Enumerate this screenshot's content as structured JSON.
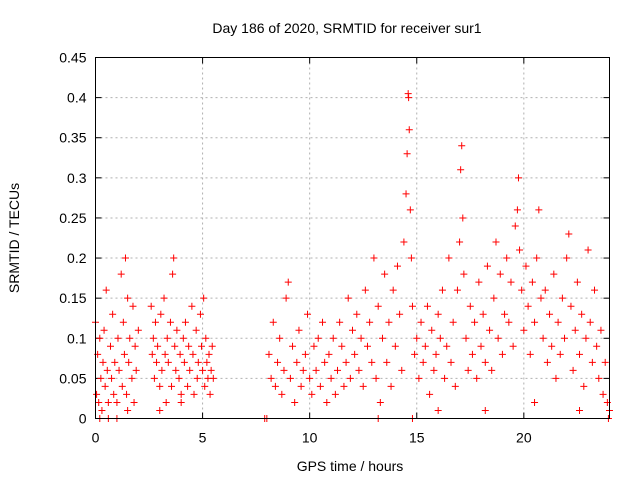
{
  "chart_data": {
    "type": "scatter",
    "title": "Day 186 of 2020, SRMTID for receiver sur1",
    "xlabel": "GPS time / hours",
    "ylabel": "SRMTID / TECUs",
    "xlim": [
      0,
      24
    ],
    "ylim": [
      0,
      0.45
    ],
    "xticks": [
      0,
      5,
      10,
      15,
      20
    ],
    "yticks": [
      0,
      0.05,
      0.1,
      0.15,
      0.2,
      0.25,
      0.3,
      0.35,
      0.4,
      0.45
    ],
    "ytick_labels": [
      "0",
      "0.05",
      "0.1",
      "0.15",
      "0.2",
      "0.25",
      "0.3",
      "0.35",
      "0.4",
      "0.45"
    ],
    "grid": true,
    "marker": "+",
    "color": "#ff0000",
    "series": [
      {
        "name": "sur1",
        "points": [
          [
            0.0,
            0.12
          ],
          [
            0.05,
            0.03
          ],
          [
            0.1,
            0.08
          ],
          [
            0.15,
            0.02
          ],
          [
            0.2,
            0.1
          ],
          [
            0.25,
            0.05
          ],
          [
            0.3,
            0.01
          ],
          [
            0.35,
            0.07
          ],
          [
            0.4,
            0.11
          ],
          [
            0.45,
            0.04
          ],
          [
            0.5,
            0.16
          ],
          [
            0.55,
            0.06
          ],
          [
            0.6,
            0.02
          ],
          [
            0.7,
            0.09
          ],
          [
            0.75,
            0.05
          ],
          [
            0.8,
            0.13
          ],
          [
            0.85,
            0.03
          ],
          [
            0.9,
            0.07
          ],
          [
            1.0,
            0.02
          ],
          [
            1.05,
            0.1
          ],
          [
            1.1,
            0.06
          ],
          [
            1.2,
            0.18
          ],
          [
            1.25,
            0.04
          ],
          [
            1.3,
            0.12
          ],
          [
            1.35,
            0.08
          ],
          [
            1.4,
            0.2
          ],
          [
            1.45,
            0.03
          ],
          [
            1.5,
            0.15
          ],
          [
            1.55,
            0.07
          ],
          [
            1.6,
            0.1
          ],
          [
            1.7,
            0.05
          ],
          [
            1.75,
            0.14
          ],
          [
            1.8,
            0.02
          ],
          [
            1.85,
            0.09
          ],
          [
            1.9,
            0.06
          ],
          [
            2.0,
            0.11
          ],
          [
            0.2,
            0.0
          ],
          [
            0.6,
            0.0
          ],
          [
            1.0,
            0.0
          ],
          [
            1.5,
            0.01
          ],
          [
            2.6,
            0.14
          ],
          [
            2.65,
            0.08
          ],
          [
            2.7,
            0.1
          ],
          [
            2.75,
            0.05
          ],
          [
            2.8,
            0.12
          ],
          [
            2.85,
            0.07
          ],
          [
            2.9,
            0.09
          ],
          [
            3.0,
            0.04
          ],
          [
            3.05,
            0.13
          ],
          [
            3.1,
            0.06
          ],
          [
            3.2,
            0.15
          ],
          [
            3.25,
            0.08
          ],
          [
            3.3,
            0.02
          ],
          [
            3.35,
            0.1
          ],
          [
            3.4,
            0.07
          ],
          [
            3.5,
            0.12
          ],
          [
            3.55,
            0.04
          ],
          [
            3.6,
            0.18
          ],
          [
            3.65,
            0.2
          ],
          [
            3.7,
            0.09
          ],
          [
            3.75,
            0.06
          ],
          [
            3.8,
            0.11
          ],
          [
            3.9,
            0.05
          ],
          [
            3.95,
            0.08
          ],
          [
            4.0,
            0.03
          ],
          [
            4.1,
            0.1
          ],
          [
            4.15,
            0.07
          ],
          [
            4.2,
            0.12
          ],
          [
            4.3,
            0.04
          ],
          [
            4.35,
            0.09
          ],
          [
            4.4,
            0.06
          ],
          [
            4.5,
            0.14
          ],
          [
            4.55,
            0.08
          ],
          [
            4.6,
            0.03
          ],
          [
            4.7,
            0.11
          ],
          [
            4.75,
            0.05
          ],
          [
            4.8,
            0.07
          ],
          [
            4.9,
            0.13
          ],
          [
            4.95,
            0.09
          ],
          [
            5.0,
            0.06
          ],
          [
            5.05,
            0.15
          ],
          [
            5.1,
            0.04
          ],
          [
            5.15,
            0.1
          ],
          [
            5.2,
            0.07
          ],
          [
            5.25,
            0.05
          ],
          [
            5.3,
            0.08
          ],
          [
            5.35,
            0.03
          ],
          [
            5.4,
            0.06
          ],
          [
            5.45,
            0.09
          ],
          [
            5.5,
            0.05
          ],
          [
            3.0,
            0.01
          ],
          [
            4.0,
            0.02
          ],
          [
            7.9,
            0.0
          ],
          [
            8.0,
            0.0
          ],
          [
            8.1,
            0.08
          ],
          [
            8.2,
            0.05
          ],
          [
            8.3,
            0.12
          ],
          [
            8.4,
            0.04
          ],
          [
            8.5,
            0.07
          ],
          [
            8.6,
            0.1
          ],
          [
            8.7,
            0.03
          ],
          [
            8.8,
            0.06
          ],
          [
            8.9,
            0.15
          ],
          [
            9.0,
            0.17
          ],
          [
            9.1,
            0.05
          ],
          [
            9.2,
            0.09
          ],
          [
            9.3,
            0.02
          ],
          [
            9.4,
            0.07
          ],
          [
            9.5,
            0.11
          ],
          [
            9.6,
            0.04
          ],
          [
            9.7,
            0.06
          ],
          [
            9.8,
            0.08
          ],
          [
            9.9,
            0.13
          ],
          [
            10.0,
            0.05
          ],
          [
            10.1,
            0.03
          ],
          [
            10.2,
            0.09
          ],
          [
            10.3,
            0.06
          ],
          [
            10.4,
            0.1
          ],
          [
            10.5,
            0.04
          ],
          [
            10.6,
            0.12
          ],
          [
            10.7,
            0.07
          ],
          [
            10.8,
            0.02
          ],
          [
            10.9,
            0.08
          ],
          [
            11.0,
            0.05
          ],
          [
            11.1,
            0.1
          ],
          [
            11.2,
            0.03
          ],
          [
            11.3,
            0.06
          ],
          [
            11.4,
            0.12
          ],
          [
            11.5,
            0.09
          ],
          [
            11.6,
            0.04
          ],
          [
            11.7,
            0.07
          ],
          [
            11.8,
            0.15
          ],
          [
            11.9,
            0.05
          ],
          [
            12.0,
            0.11
          ],
          [
            12.1,
            0.08
          ],
          [
            12.2,
            0.13
          ],
          [
            12.3,
            0.06
          ],
          [
            12.4,
            0.1
          ],
          [
            12.5,
            0.04
          ],
          [
            12.6,
            0.16
          ],
          [
            12.7,
            0.09
          ],
          [
            12.8,
            0.12
          ],
          [
            12.9,
            0.07
          ],
          [
            13.0,
            0.2
          ],
          [
            13.1,
            0.05
          ],
          [
            13.2,
            0.14
          ],
          [
            13.3,
            0.02
          ],
          [
            13.4,
            0.1
          ],
          [
            13.5,
            0.18
          ],
          [
            13.6,
            0.07
          ],
          [
            13.7,
            0.12
          ],
          [
            13.8,
            0.04
          ],
          [
            13.9,
            0.16
          ],
          [
            14.0,
            0.09
          ],
          [
            14.1,
            0.19
          ],
          [
            14.2,
            0.13
          ],
          [
            14.3,
            0.06
          ],
          [
            14.4,
            0.22
          ],
          [
            14.5,
            0.28
          ],
          [
            14.55,
            0.33
          ],
          [
            14.6,
            0.405
          ],
          [
            14.62,
            0.4
          ],
          [
            14.65,
            0.36
          ],
          [
            14.7,
            0.26
          ],
          [
            14.75,
            0.2
          ],
          [
            14.8,
            0.14
          ],
          [
            14.9,
            0.08
          ],
          [
            15.0,
            0.1
          ],
          [
            15.1,
            0.05
          ],
          [
            15.2,
            0.12
          ],
          [
            15.3,
            0.07
          ],
          [
            15.4,
            0.09
          ],
          [
            15.5,
            0.14
          ],
          [
            15.6,
            0.03
          ],
          [
            15.7,
            0.11
          ],
          [
            15.8,
            0.06
          ],
          [
            15.9,
            0.08
          ],
          [
            16.0,
            0.13
          ],
          [
            16.1,
            0.1
          ],
          [
            16.2,
            0.16
          ],
          [
            16.3,
            0.05
          ],
          [
            16.4,
            0.09
          ],
          [
            16.5,
            0.2
          ],
          [
            16.6,
            0.07
          ],
          [
            16.7,
            0.12
          ],
          [
            16.8,
            0.04
          ],
          [
            16.9,
            0.16
          ],
          [
            17.0,
            0.22
          ],
          [
            17.05,
            0.31
          ],
          [
            17.1,
            0.34
          ],
          [
            17.15,
            0.25
          ],
          [
            17.2,
            0.18
          ],
          [
            17.3,
            0.1
          ],
          [
            17.4,
            0.06
          ],
          [
            17.5,
            0.14
          ],
          [
            17.6,
            0.08
          ],
          [
            17.7,
            0.12
          ],
          [
            17.8,
            0.05
          ],
          [
            17.9,
            0.17
          ],
          [
            18.0,
            0.09
          ],
          [
            18.1,
            0.13
          ],
          [
            18.2,
            0.07
          ],
          [
            18.3,
            0.19
          ],
          [
            18.4,
            0.11
          ],
          [
            18.5,
            0.06
          ],
          [
            18.6,
            0.15
          ],
          [
            18.7,
            0.22
          ],
          [
            18.8,
            0.1
          ],
          [
            18.9,
            0.18
          ],
          [
            19.0,
            0.08
          ],
          [
            19.1,
            0.13
          ],
          [
            19.2,
            0.2
          ],
          [
            19.3,
            0.12
          ],
          [
            19.4,
            0.17
          ],
          [
            19.5,
            0.09
          ],
          [
            19.6,
            0.24
          ],
          [
            19.7,
            0.26
          ],
          [
            19.75,
            0.3
          ],
          [
            19.8,
            0.21
          ],
          [
            19.9,
            0.16
          ],
          [
            20.0,
            0.11
          ],
          [
            20.1,
            0.19
          ],
          [
            20.2,
            0.14
          ],
          [
            20.3,
            0.08
          ],
          [
            20.4,
            0.17
          ],
          [
            20.5,
            0.12
          ],
          [
            20.6,
            0.2
          ],
          [
            20.7,
            0.26
          ],
          [
            20.8,
            0.15
          ],
          [
            20.9,
            0.1
          ],
          [
            21.0,
            0.16
          ],
          [
            21.1,
            0.07
          ],
          [
            21.2,
            0.13
          ],
          [
            21.3,
            0.09
          ],
          [
            21.4,
            0.18
          ],
          [
            21.5,
            0.05
          ],
          [
            21.6,
            0.12
          ],
          [
            21.7,
            0.08
          ],
          [
            21.8,
            0.15
          ],
          [
            21.9,
            0.1
          ],
          [
            22.0,
            0.2
          ],
          [
            22.1,
            0.23
          ],
          [
            22.2,
            0.14
          ],
          [
            22.3,
            0.06
          ],
          [
            22.4,
            0.11
          ],
          [
            22.5,
            0.17
          ],
          [
            22.6,
            0.08
          ],
          [
            22.7,
            0.13
          ],
          [
            22.8,
            0.04
          ],
          [
            22.9,
            0.1
          ],
          [
            23.0,
            0.21
          ],
          [
            23.1,
            0.12
          ],
          [
            23.2,
            0.07
          ],
          [
            23.3,
            0.16
          ],
          [
            23.4,
            0.09
          ],
          [
            23.5,
            0.05
          ],
          [
            23.6,
            0.11
          ],
          [
            23.7,
            0.03
          ],
          [
            23.8,
            0.07
          ],
          [
            23.9,
            0.02
          ],
          [
            24.0,
            0.01
          ],
          [
            23.95,
            0.0
          ],
          [
            13.2,
            0.0
          ],
          [
            14.8,
            0.0
          ],
          [
            16.0,
            0.01
          ],
          [
            18.2,
            0.01
          ],
          [
            20.5,
            0.02
          ],
          [
            22.6,
            0.01
          ]
        ]
      }
    ]
  }
}
